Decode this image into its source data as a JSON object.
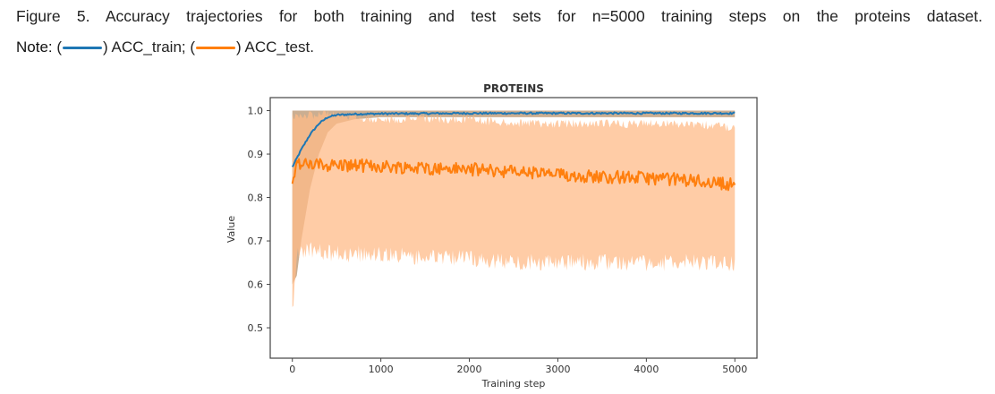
{
  "caption": {
    "figure_label": "Figure 5",
    "text": ". Accuracy trajectories for both training and test sets for n=5000 training steps on the proteins dataset.",
    "note_label": "Note:",
    "note_open1": "(",
    "note_item1": ") ACC_train; (",
    "note_item2": ") ACC_test."
  },
  "colors": {
    "train": "#1f77b4",
    "test": "#ff7f0e",
    "test_band": "#ffbb88",
    "train_band": "#c2a07e"
  },
  "chart_data": {
    "type": "line",
    "title": "PROTEINS",
    "xlabel": "Training step",
    "ylabel": "Value",
    "xlim": [
      -250,
      5250
    ],
    "ylim": [
      0.43,
      1.03
    ],
    "xticks": [
      0,
      1000,
      2000,
      3000,
      4000,
      5000
    ],
    "xtick_labels": [
      "0",
      "1000",
      "2000",
      "3000",
      "4000",
      "5000"
    ],
    "yticks": [
      0.5,
      0.6,
      0.7,
      0.8,
      0.9,
      1.0
    ],
    "ytick_labels": [
      "0.5",
      "0.6",
      "0.7",
      "0.8",
      "0.9",
      "1.0"
    ],
    "grid": false,
    "series": [
      {
        "name": "ACC_train",
        "x": [
          0,
          50,
          100,
          200,
          300,
          400,
          500,
          700,
          1000,
          2000,
          3000,
          4000,
          5000
        ],
        "values": [
          0.87,
          0.89,
          0.91,
          0.945,
          0.97,
          0.985,
          0.99,
          0.992,
          0.993,
          0.994,
          0.994,
          0.994,
          0.994
        ],
        "band_lower": [
          0.6,
          0.62,
          0.7,
          0.82,
          0.9,
          0.95,
          0.97,
          0.98,
          0.985,
          0.985,
          0.985,
          0.985,
          0.985
        ],
        "band_upper": [
          1.0,
          1.0,
          1.0,
          1.0,
          1.0,
          1.0,
          1.0,
          1.0,
          1.0,
          1.0,
          1.0,
          1.0,
          1.0
        ]
      },
      {
        "name": "ACC_test",
        "x": [
          0,
          50,
          100,
          500,
          1000,
          1500,
          2000,
          2500,
          3000,
          3500,
          4000,
          4500,
          5000
        ],
        "values": [
          0.84,
          0.88,
          0.875,
          0.875,
          0.872,
          0.868,
          0.865,
          0.86,
          0.852,
          0.848,
          0.845,
          0.84,
          0.83
        ],
        "band_lower": [
          0.55,
          0.68,
          0.7,
          0.69,
          0.69,
          0.68,
          0.68,
          0.67,
          0.67,
          0.67,
          0.67,
          0.67,
          0.67
        ],
        "band_upper": [
          1.0,
          1.0,
          1.0,
          1.0,
          0.99,
          0.99,
          0.99,
          0.98,
          0.98,
          0.98,
          0.98,
          0.98,
          0.97
        ]
      }
    ]
  }
}
